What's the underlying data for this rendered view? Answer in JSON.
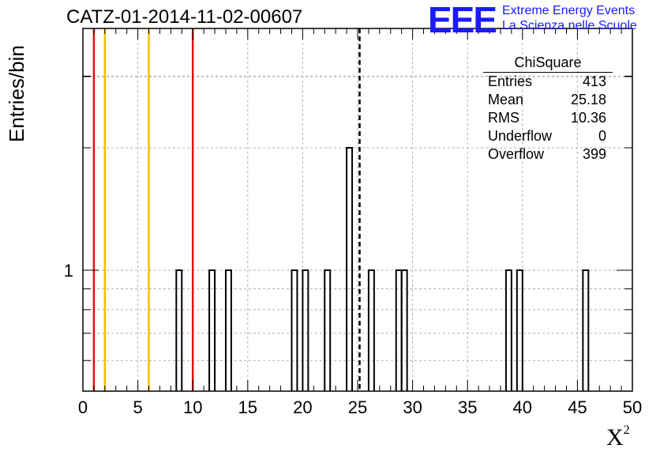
{
  "chart_data": {
    "type": "bar",
    "title": "CATZ-01-2014-11-02-00607",
    "xlabel": "X",
    "xlabel_sup": "2",
    "ylabel": "Entries/bin",
    "xlim": [
      0,
      50
    ],
    "ylog": true,
    "xticks": [
      0,
      5,
      10,
      15,
      20,
      25,
      30,
      35,
      40,
      45,
      50
    ],
    "yticks": [
      1
    ],
    "grid": true,
    "bin_width": 0.5,
    "bins": [
      {
        "x": 8.5,
        "value": 1
      },
      {
        "x": 11.5,
        "value": 1
      },
      {
        "x": 13.0,
        "value": 1
      },
      {
        "x": 19.0,
        "value": 1
      },
      {
        "x": 20.0,
        "value": 1
      },
      {
        "x": 22.0,
        "value": 1
      },
      {
        "x": 24.0,
        "value": 2
      },
      {
        "x": 26.0,
        "value": 1
      },
      {
        "x": 28.5,
        "value": 1
      },
      {
        "x": 29.0,
        "value": 1
      },
      {
        "x": 38.5,
        "value": 1
      },
      {
        "x": 39.5,
        "value": 1
      },
      {
        "x": 45.5,
        "value": 1
      }
    ],
    "vertical_lines": [
      {
        "x": 1,
        "color": "#e01010",
        "style": "solid"
      },
      {
        "x": 2,
        "color": "#f0c000",
        "style": "solid"
      },
      {
        "x": 6,
        "color": "#f0c000",
        "style": "solid"
      },
      {
        "x": 10,
        "color": "#e01010",
        "style": "solid"
      },
      {
        "x": 25.18,
        "color": "#000000",
        "style": "dashed"
      }
    ],
    "stats_box": {
      "title": "ChiSquare",
      "rows": [
        {
          "label": "Entries",
          "value": "413"
        },
        {
          "label": "Mean",
          "value": "25.18"
        },
        {
          "label": "RMS",
          "value": "10.36"
        },
        {
          "label": "Underflow",
          "value": "0"
        },
        {
          "label": "Overflow",
          "value": "399"
        }
      ]
    }
  },
  "logo": {
    "mark": "EEE",
    "line1": "Extreme Energy Events",
    "line2": "La Scienza nelle Scuole",
    "color": "#1a1aff"
  }
}
